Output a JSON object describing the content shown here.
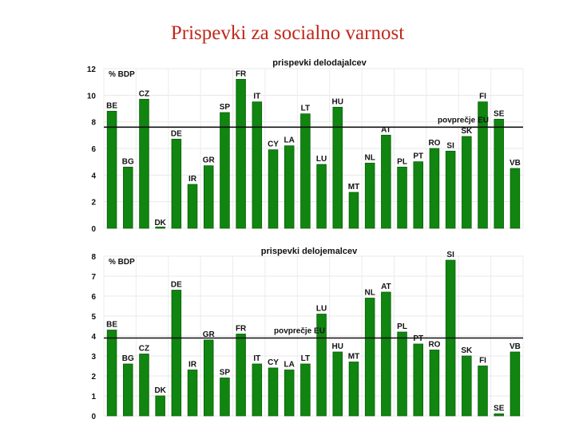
{
  "page": {
    "title": "Prispevki za socialno varnost"
  },
  "chart_data": [
    {
      "type": "bar",
      "title": "prispevki delodajalcev",
      "ylabel": "% BDP",
      "ylim": [
        0,
        12
      ],
      "yticks": [
        0,
        2,
        4,
        6,
        8,
        10,
        12
      ],
      "grid": true,
      "color": "#108510",
      "categories": [
        "BE",
        "BG",
        "CZ",
        "DK",
        "DE",
        "IR",
        "GR",
        "SP",
        "FR",
        "IT",
        "CY",
        "LA",
        "LT",
        "LU",
        "HU",
        "MT",
        "NL",
        "AT",
        "PL",
        "PT",
        "RO",
        "SI",
        "SK",
        "FI",
        "SE",
        "VB"
      ],
      "values": [
        8.8,
        4.6,
        9.7,
        0.1,
        6.7,
        3.3,
        4.7,
        8.7,
        11.2,
        9.5,
        5.9,
        6.2,
        8.6,
        4.8,
        9.1,
        2.7,
        4.9,
        7.0,
        4.6,
        5.0,
        6.0,
        5.8,
        6.9,
        9.5,
        8.2,
        4.5
      ],
      "average": {
        "label": "povprečje EU",
        "value": 7.6
      }
    },
    {
      "type": "bar",
      "title": "prispevki delojemalcev",
      "ylabel": "% BDP",
      "ylim": [
        0,
        8
      ],
      "yticks": [
        0,
        1,
        2,
        3,
        4,
        5,
        6,
        7,
        8
      ],
      "grid": true,
      "color": "#108510",
      "categories": [
        "BE",
        "BG",
        "CZ",
        "DK",
        "DE",
        "IR",
        "GR",
        "SP",
        "FR",
        "IT",
        "CY",
        "LA",
        "LT",
        "LU",
        "HU",
        "MT",
        "NL",
        "AT",
        "PL",
        "PT",
        "RO",
        "SI",
        "SK",
        "FI",
        "SE",
        "VB"
      ],
      "values": [
        4.3,
        2.6,
        3.1,
        1.0,
        6.3,
        2.3,
        3.8,
        1.9,
        4.1,
        2.6,
        2.4,
        2.3,
        2.6,
        5.1,
        3.2,
        2.7,
        5.9,
        6.2,
        4.2,
        3.6,
        3.3,
        7.8,
        3.0,
        2.5,
        0.1,
        3.2
      ],
      "average": {
        "label": "povprečje EU",
        "value": 3.9
      }
    }
  ]
}
